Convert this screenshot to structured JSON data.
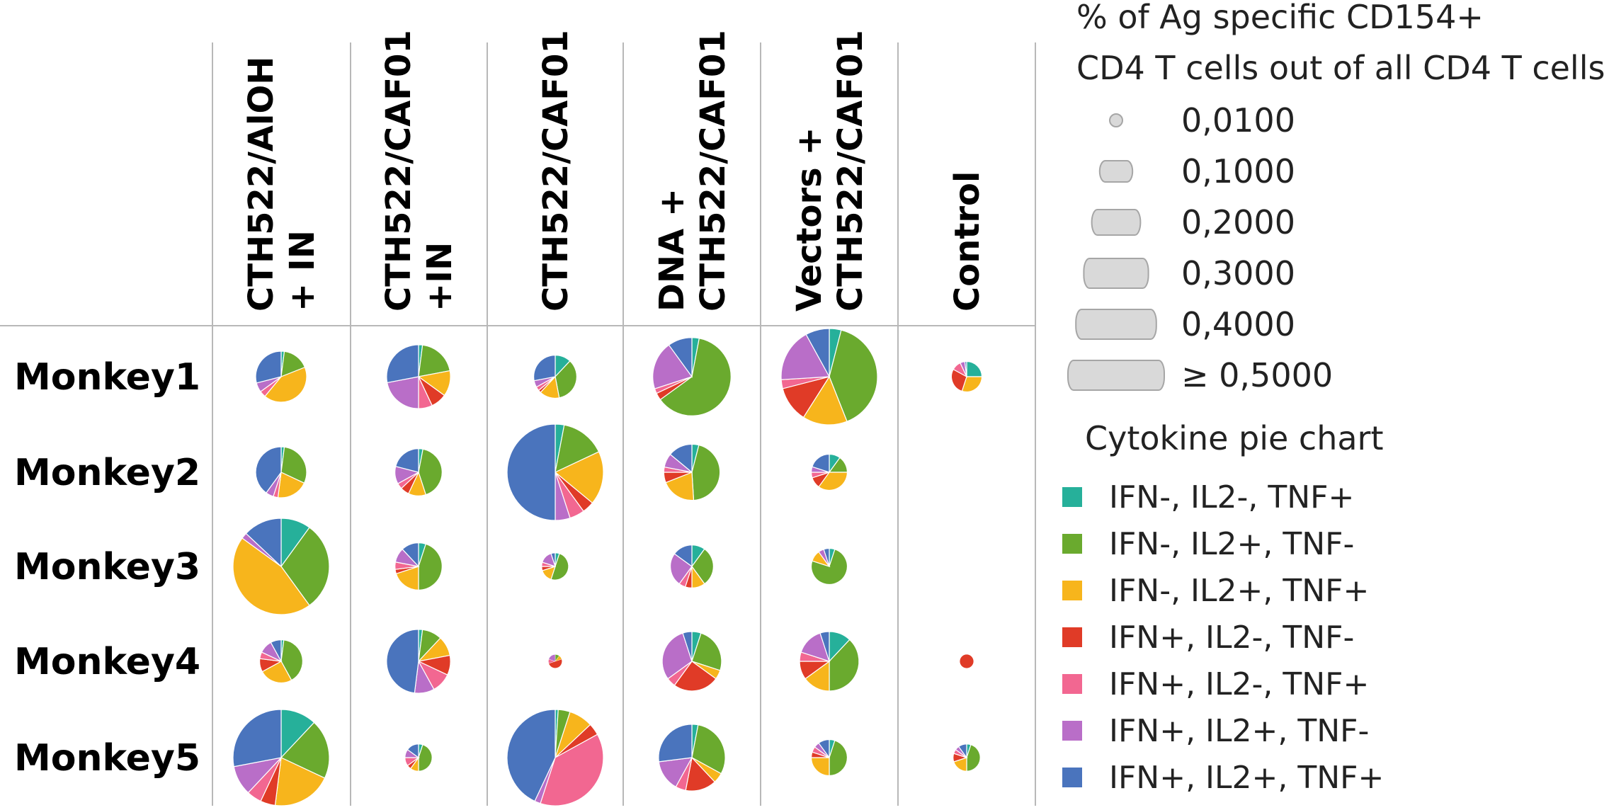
{
  "chart_data": {
    "type": "pie-matrix",
    "columns": [
      {
        "lines": [
          "CTH522/AlOH",
          "+ IN"
        ]
      },
      {
        "lines": [
          "CTH522/CAF01",
          "+IN"
        ]
      },
      {
        "lines": [
          "CTH522/CAF01"
        ]
      },
      {
        "lines": [
          "DNA +",
          "CTH522/CAF01"
        ]
      },
      {
        "lines": [
          "Vectors +",
          "CTH522/CAF01"
        ]
      },
      {
        "lines": [
          "Control"
        ]
      }
    ],
    "rows": [
      "Monkey1",
      "Monkey2",
      "Monkey3",
      "Monkey4",
      "Monkey5"
    ],
    "categories": [
      "IFN-, IL2-, TNF+",
      "IFN-, IL2+, TNF-",
      "IFN-, IL2+, TNF+",
      "IFN+, IL2-, TNF-",
      "IFN+, IL2-, TNF+",
      "IFN+, IL2+, TNF-",
      "IFN+, IL2+, TNF+"
    ],
    "colors": [
      "#26b09a",
      "#6aaa2e",
      "#f7b51c",
      "#e03b27",
      "#f26791",
      "#b96ec8",
      "#4a74bd"
    ],
    "size_legend": {
      "title_lines": [
        "% of Ag specific CD154+",
        "CD4 T cells out of all CD4 T cells"
      ],
      "values": [
        0.01,
        0.1,
        0.2,
        0.3,
        0.4,
        0.5
      ],
      "labels": [
        "0,0100",
        "0,1000",
        "0,2000",
        "0,3000",
        "0,4000",
        "≥ 0,5000"
      ]
    },
    "color_legend_title": "Cytokine pie chart",
    "cells": [
      [
        {
          "size": 0.14,
          "fractions": [
            0.02,
            0.17,
            0.42,
            0.0,
            0.04,
            0.06,
            0.29
          ]
        },
        {
          "size": 0.22,
          "fractions": [
            0.02,
            0.2,
            0.13,
            0.08,
            0.07,
            0.22,
            0.28
          ]
        },
        {
          "size": 0.1,
          "fractions": [
            0.12,
            0.35,
            0.15,
            0.02,
            0.03,
            0.05,
            0.28
          ]
        },
        {
          "size": 0.33,
          "fractions": [
            0.03,
            0.62,
            0.0,
            0.03,
            0.02,
            0.2,
            0.1
          ]
        },
        {
          "size": 0.5,
          "fractions": [
            0.04,
            0.4,
            0.15,
            0.12,
            0.03,
            0.18,
            0.08
          ]
        },
        {
          "size": 0.05,
          "fractions": [
            0.25,
            0.0,
            0.3,
            0.28,
            0.1,
            0.05,
            0.02
          ]
        }
      ],
      [
        {
          "size": 0.14,
          "fractions": [
            0.02,
            0.3,
            0.2,
            0.0,
            0.03,
            0.05,
            0.4
          ]
        },
        {
          "size": 0.12,
          "fractions": [
            0.03,
            0.42,
            0.12,
            0.06,
            0.04,
            0.12,
            0.21
          ]
        },
        {
          "size": 0.5,
          "fractions": [
            0.03,
            0.15,
            0.18,
            0.04,
            0.05,
            0.05,
            0.5
          ]
        },
        {
          "size": 0.17,
          "fractions": [
            0.04,
            0.45,
            0.2,
            0.06,
            0.03,
            0.08,
            0.14
          ]
        },
        {
          "size": 0.07,
          "fractions": [
            0.1,
            0.15,
            0.35,
            0.1,
            0.05,
            0.05,
            0.2
          ]
        },
        null
      ],
      [
        {
          "size": 0.5,
          "fractions": [
            0.1,
            0.3,
            0.45,
            0.0,
            0.0,
            0.02,
            0.13
          ]
        },
        {
          "size": 0.12,
          "fractions": [
            0.05,
            0.45,
            0.2,
            0.03,
            0.05,
            0.1,
            0.12
          ]
        },
        {
          "size": 0.04,
          "fractions": [
            0.05,
            0.5,
            0.15,
            0.05,
            0.05,
            0.15,
            0.05
          ]
        },
        {
          "size": 0.1,
          "fractions": [
            0.1,
            0.3,
            0.1,
            0.05,
            0.05,
            0.25,
            0.15
          ]
        },
        {
          "size": 0.07,
          "fractions": [
            0.05,
            0.75,
            0.1,
            0.0,
            0.0,
            0.05,
            0.05
          ]
        },
        null
      ],
      [
        {
          "size": 0.1,
          "fractions": [
            0.02,
            0.4,
            0.25,
            0.1,
            0.05,
            0.1,
            0.08
          ]
        },
        {
          "size": 0.22,
          "fractions": [
            0.02,
            0.1,
            0.1,
            0.1,
            0.1,
            0.1,
            0.48
          ]
        },
        {
          "size": 0.01,
          "fractions": [
            0.0,
            0.1,
            0.1,
            0.5,
            0.1,
            0.2,
            0.0
          ]
        },
        {
          "size": 0.19,
          "fractions": [
            0.05,
            0.25,
            0.05,
            0.25,
            0.05,
            0.3,
            0.05
          ]
        },
        {
          "size": 0.19,
          "fractions": [
            0.12,
            0.38,
            0.15,
            0.1,
            0.05,
            0.15,
            0.05
          ]
        },
        {
          "size": 0.01,
          "fractions": [
            0.0,
            0.0,
            0.0,
            1.0,
            0.0,
            0.0,
            0.0
          ]
        }
      ],
      [
        {
          "size": 0.5,
          "fractions": [
            0.12,
            0.2,
            0.2,
            0.05,
            0.05,
            0.1,
            0.28
          ]
        },
        {
          "size": 0.04,
          "fractions": [
            0.05,
            0.45,
            0.1,
            0.05,
            0.1,
            0.1,
            0.15
          ]
        },
        {
          "size": 0.5,
          "fractions": [
            0.01,
            0.04,
            0.08,
            0.04,
            0.38,
            0.02,
            0.43
          ]
        },
        {
          "size": 0.24,
          "fractions": [
            0.03,
            0.3,
            0.05,
            0.15,
            0.05,
            0.15,
            0.27
          ]
        },
        {
          "size": 0.07,
          "fractions": [
            0.05,
            0.45,
            0.25,
            0.05,
            0.05,
            0.05,
            0.1
          ]
        },
        {
          "size": 0.04,
          "fractions": [
            0.05,
            0.45,
            0.2,
            0.1,
            0.05,
            0.05,
            0.1
          ]
        }
      ]
    ]
  }
}
